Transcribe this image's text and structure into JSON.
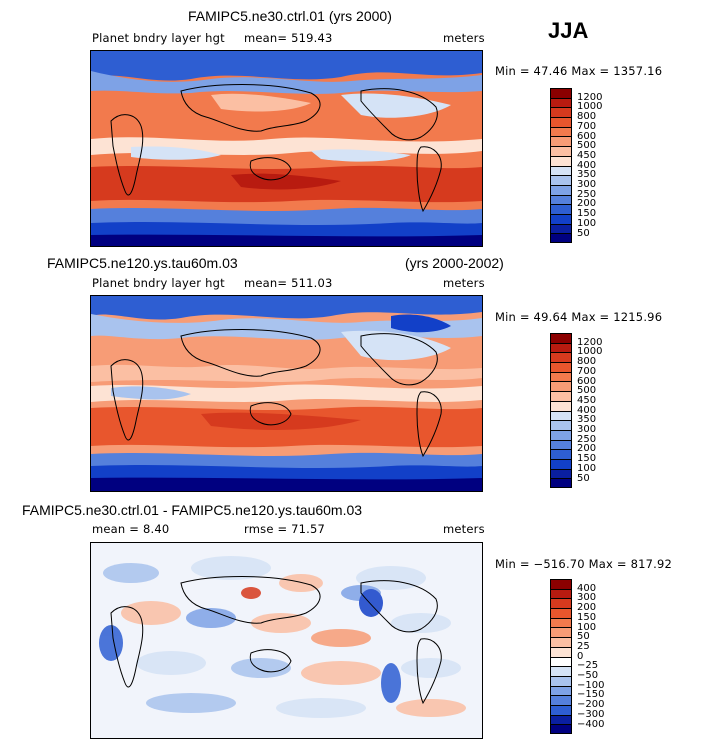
{
  "season": "JJA",
  "panels": [
    {
      "title": "FAMIPC5.ne30.ctrl.01 (yrs 2000)",
      "title_right": "",
      "variable": "Planet bndry layer hgt",
      "stat_text": "mean= 519.43",
      "stat2_text": "",
      "units": "meters",
      "minmax": "Min =   47.46  Max = 1357.16",
      "levels": [
        "1200",
        "1000",
        "800",
        "700",
        "600",
        "500",
        "450",
        "400",
        "350",
        "300",
        "250",
        "200",
        "150",
        "100",
        "50"
      ],
      "colors": [
        "#8b0000",
        "#b81b10",
        "#d63a1e",
        "#e8562d",
        "#f27a4d",
        "#f79c76",
        "#fbbfa3",
        "#fde3d4",
        "#d5e3f6",
        "#a9c3ee",
        "#7ea2e6",
        "#5580dc",
        "#2e5ed2",
        "#1240c8",
        "#0a1fa0",
        "#000080"
      ]
    },
    {
      "title": "FAMIPC5.ne120.ys.tau60m.03",
      "title_right": "(yrs 2000-2002)",
      "variable": "Planet bndry layer hgt",
      "stat_text": "mean= 511.03",
      "stat2_text": "",
      "units": "meters",
      "minmax": "Min =   49.64  Max = 1215.96",
      "levels": [
        "1200",
        "1000",
        "800",
        "700",
        "600",
        "500",
        "450",
        "400",
        "350",
        "300",
        "250",
        "200",
        "150",
        "100",
        "50"
      ],
      "colors": [
        "#8b0000",
        "#b81b10",
        "#d63a1e",
        "#e8562d",
        "#f27a4d",
        "#f79c76",
        "#fbbfa3",
        "#fde3d4",
        "#d5e3f6",
        "#a9c3ee",
        "#7ea2e6",
        "#5580dc",
        "#2e5ed2",
        "#1240c8",
        "#0a1fa0",
        "#000080"
      ]
    },
    {
      "title": "FAMIPC5.ne30.ctrl.01 - FAMIPC5.ne120.ys.tau60m.03",
      "title_right": "",
      "variable": "",
      "stat_text": "mean =     8.40",
      "stat2_text": "rmse =   71.57",
      "units": "meters",
      "minmax": "Min = −516.70  Max =  817.92",
      "levels": [
        "400",
        "300",
        "200",
        "150",
        "100",
        "50",
        "25",
        "0",
        "−25",
        "−50",
        "−100",
        "−150",
        "−200",
        "−300",
        "−400"
      ],
      "colors": [
        "#8b0000",
        "#b81b10",
        "#d63a1e",
        "#e8562d",
        "#f27a4d",
        "#f79c76",
        "#fbbfa3",
        "#fde3d4",
        "#ffffff",
        "#d5e3f6",
        "#a9c3ee",
        "#7ea2e6",
        "#5580dc",
        "#2e5ed2",
        "#0a1fa0",
        "#000080"
      ]
    }
  ]
}
